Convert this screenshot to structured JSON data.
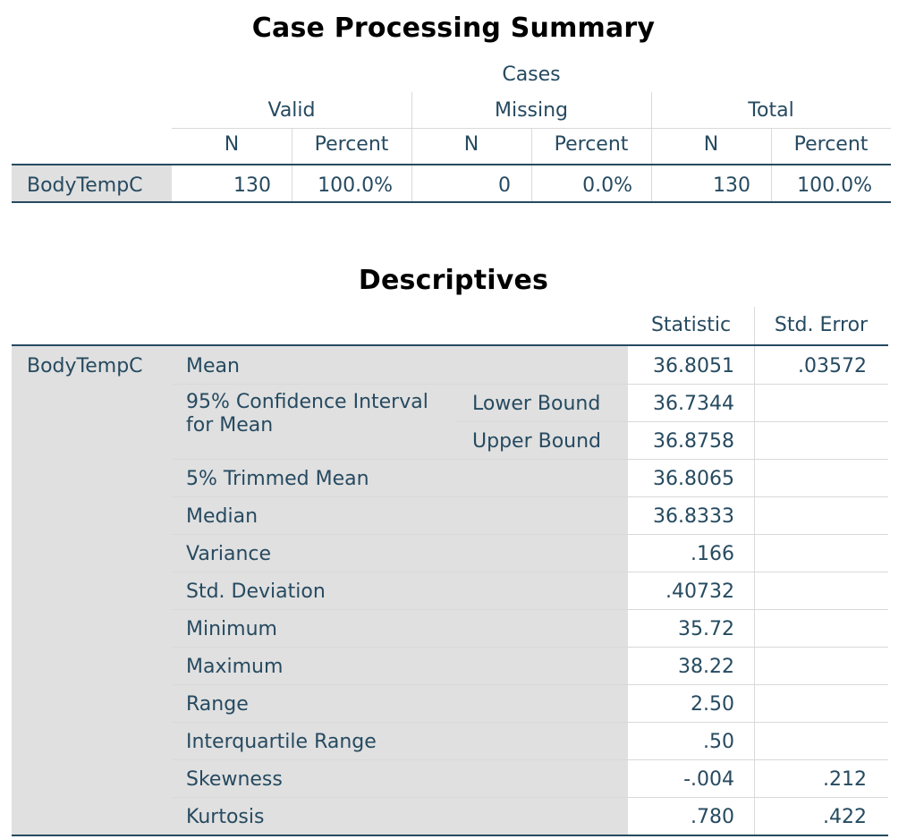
{
  "case_summary": {
    "title": "Case Processing Summary",
    "cases_label": "Cases",
    "groups": [
      "Valid",
      "Missing",
      "Total"
    ],
    "col_n": "N",
    "col_percent": "Percent",
    "row": {
      "label": "BodyTempC",
      "valid_n": "130",
      "valid_pct": "100.0%",
      "missing_n": "0",
      "missing_pct": "0.0%",
      "total_n": "130",
      "total_pct": "100.0%"
    }
  },
  "descriptives": {
    "title": "Descriptives",
    "col_statistic": "Statistic",
    "col_std_error": "Std. Error",
    "variable": "BodyTempC",
    "ci_label_line1": "95% Confidence Interval",
    "ci_label_line2": "for Mean",
    "rows": [
      {
        "label": "Mean",
        "stat": "36.8051",
        "se": ".03572"
      },
      {
        "label": "Lower Bound",
        "stat": "36.7344",
        "se": ""
      },
      {
        "label": "Upper Bound",
        "stat": "36.8758",
        "se": ""
      },
      {
        "label": "5% Trimmed Mean",
        "stat": "36.8065",
        "se": ""
      },
      {
        "label": "Median",
        "stat": "36.8333",
        "se": ""
      },
      {
        "label": "Variance",
        "stat": ".166",
        "se": ""
      },
      {
        "label": "Std. Deviation",
        "stat": ".40732",
        "se": ""
      },
      {
        "label": "Minimum",
        "stat": "35.72",
        "se": ""
      },
      {
        "label": "Maximum",
        "stat": "38.22",
        "se": ""
      },
      {
        "label": "Range",
        "stat": "2.50",
        "se": ""
      },
      {
        "label": "Interquartile Range",
        "stat": ".50",
        "se": ""
      },
      {
        "label": "Skewness",
        "stat": "-.004",
        "se": ".212"
      },
      {
        "label": "Kurtosis",
        "stat": ".780",
        "se": ".422"
      }
    ]
  }
}
